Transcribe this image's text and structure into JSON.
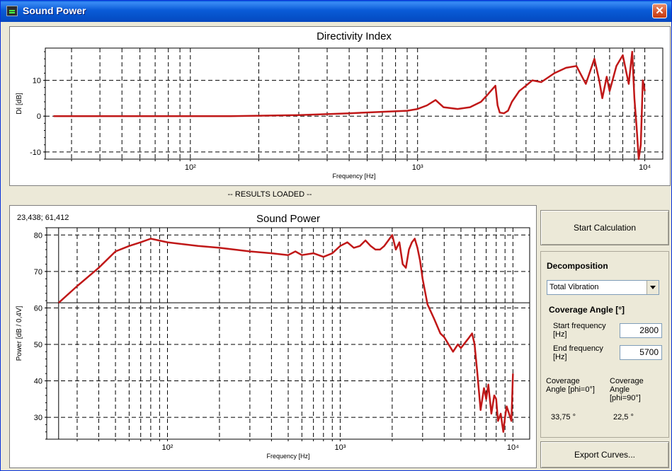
{
  "window": {
    "title": "Sound Power",
    "close_glyph": "✕"
  },
  "di_chart": {
    "title": "Directivity Index",
    "xlabel": "Frequency [Hz]",
    "ylabel": "DI [dB]",
    "yticks": [
      "10",
      "0",
      "-10"
    ],
    "xticks": [
      "10²",
      "10³",
      "10⁴"
    ]
  },
  "status_text": "-- RESULTS LOADED --",
  "sp_chart": {
    "title": "Sound Power",
    "cursor_readout": "23,438; 61,412",
    "xlabel": "Frequency [Hz]",
    "ylabel": "Power [dB / 0,4V]",
    "yticks": [
      "80",
      "70",
      "60",
      "50",
      "40",
      "30"
    ],
    "xticks": [
      "10²",
      "10³",
      "10⁴"
    ]
  },
  "buttons": {
    "start": "Start Calculation",
    "export": "Export Curves..."
  },
  "decomposition": {
    "heading": "Decomposition",
    "selected": "Total Vibration",
    "coverage_heading": "Coverage Angle [°]",
    "start_freq_label": "Start frequency [Hz]",
    "start_freq_value": "2800",
    "end_freq_label": "End frequency [Hz]",
    "end_freq_value": "5700",
    "angle0_label": "Coverage Angle [phi=0°]",
    "angle0_value": "33,75 °",
    "angle90_label": "Coverage Angle [phi=90°]",
    "angle90_value": "22,5 °"
  },
  "colors": {
    "curve": "#c01818",
    "grid": "#000000"
  },
  "chart_data": [
    {
      "type": "line",
      "title": "Directivity Index",
      "xlabel": "Frequency [Hz]",
      "ylabel": "DI [dB]",
      "xscale": "log",
      "xlim": [
        23,
        12000
      ],
      "ylim": [
        -12,
        19
      ],
      "grid": true,
      "series": [
        {
          "x": [
            25,
            40,
            80,
            150,
            300,
            500,
            700,
            900,
            1000,
            1100,
            1200,
            1300,
            1500,
            1700,
            1900,
            2000,
            2200,
            2250,
            2300,
            2400,
            2500,
            2600,
            2800,
            3000,
            3200,
            3500,
            4000,
            4500,
            5000,
            5500,
            6000,
            6300,
            6500,
            6800,
            7000,
            7500,
            8000,
            8500,
            8800,
            9000,
            9200,
            9400,
            9600,
            9800,
            10000
          ],
          "y": [
            0,
            0,
            0,
            0,
            0.3,
            0.8,
            1.2,
            1.5,
            2,
            3,
            4.5,
            2.5,
            2,
            2.5,
            4,
            5.5,
            8.5,
            3,
            1,
            0.8,
            1.5,
            4,
            7,
            8.5,
            10,
            9.5,
            12,
            13.5,
            14,
            9,
            16,
            10,
            5,
            11,
            7,
            14,
            17,
            9,
            18,
            5,
            -3,
            -12,
            -8,
            10,
            7
          ]
        }
      ]
    },
    {
      "type": "line",
      "title": "Sound Power",
      "xlabel": "Frequency [Hz]",
      "ylabel": "Power [dB / 0,4V]",
      "xscale": "log",
      "xlim": [
        20,
        12500
      ],
      "ylim": [
        24,
        82
      ],
      "grid": true,
      "series": [
        {
          "x": [
            23.438,
            30,
            40,
            50,
            60,
            70,
            80,
            100,
            150,
            200,
            300,
            400,
            500,
            550,
            600,
            700,
            800,
            900,
            1000,
            1100,
            1200,
            1300,
            1400,
            1500,
            1600,
            1700,
            1800,
            1900,
            2000,
            2100,
            2200,
            2300,
            2400,
            2500,
            2600,
            2700,
            2800,
            2900,
            3000,
            3200,
            3500,
            3800,
            4000,
            4500,
            4800,
            5000,
            5500,
            5800,
            6000,
            6200,
            6500,
            6800,
            7000,
            7200,
            7500,
            7800,
            8000,
            8200,
            8500,
            8800,
            9000,
            9200,
            9500,
            9800,
            10000
          ],
          "y": [
            61.4,
            66,
            71,
            75.5,
            77,
            78,
            79,
            78,
            77,
            76.5,
            75.5,
            75,
            74.5,
            75.5,
            74.5,
            75,
            74,
            75,
            77,
            78,
            76.5,
            77,
            78.5,
            77,
            76,
            76,
            77,
            78.5,
            80,
            76,
            78,
            72,
            71,
            76,
            78,
            79,
            76.5,
            73,
            68,
            61,
            57,
            53,
            52,
            48,
            50,
            49,
            51.5,
            53,
            50,
            43,
            32,
            38,
            35,
            39,
            31,
            36,
            35,
            29,
            31,
            26,
            30,
            33,
            31,
            29,
            42
          ]
        }
      ]
    }
  ]
}
